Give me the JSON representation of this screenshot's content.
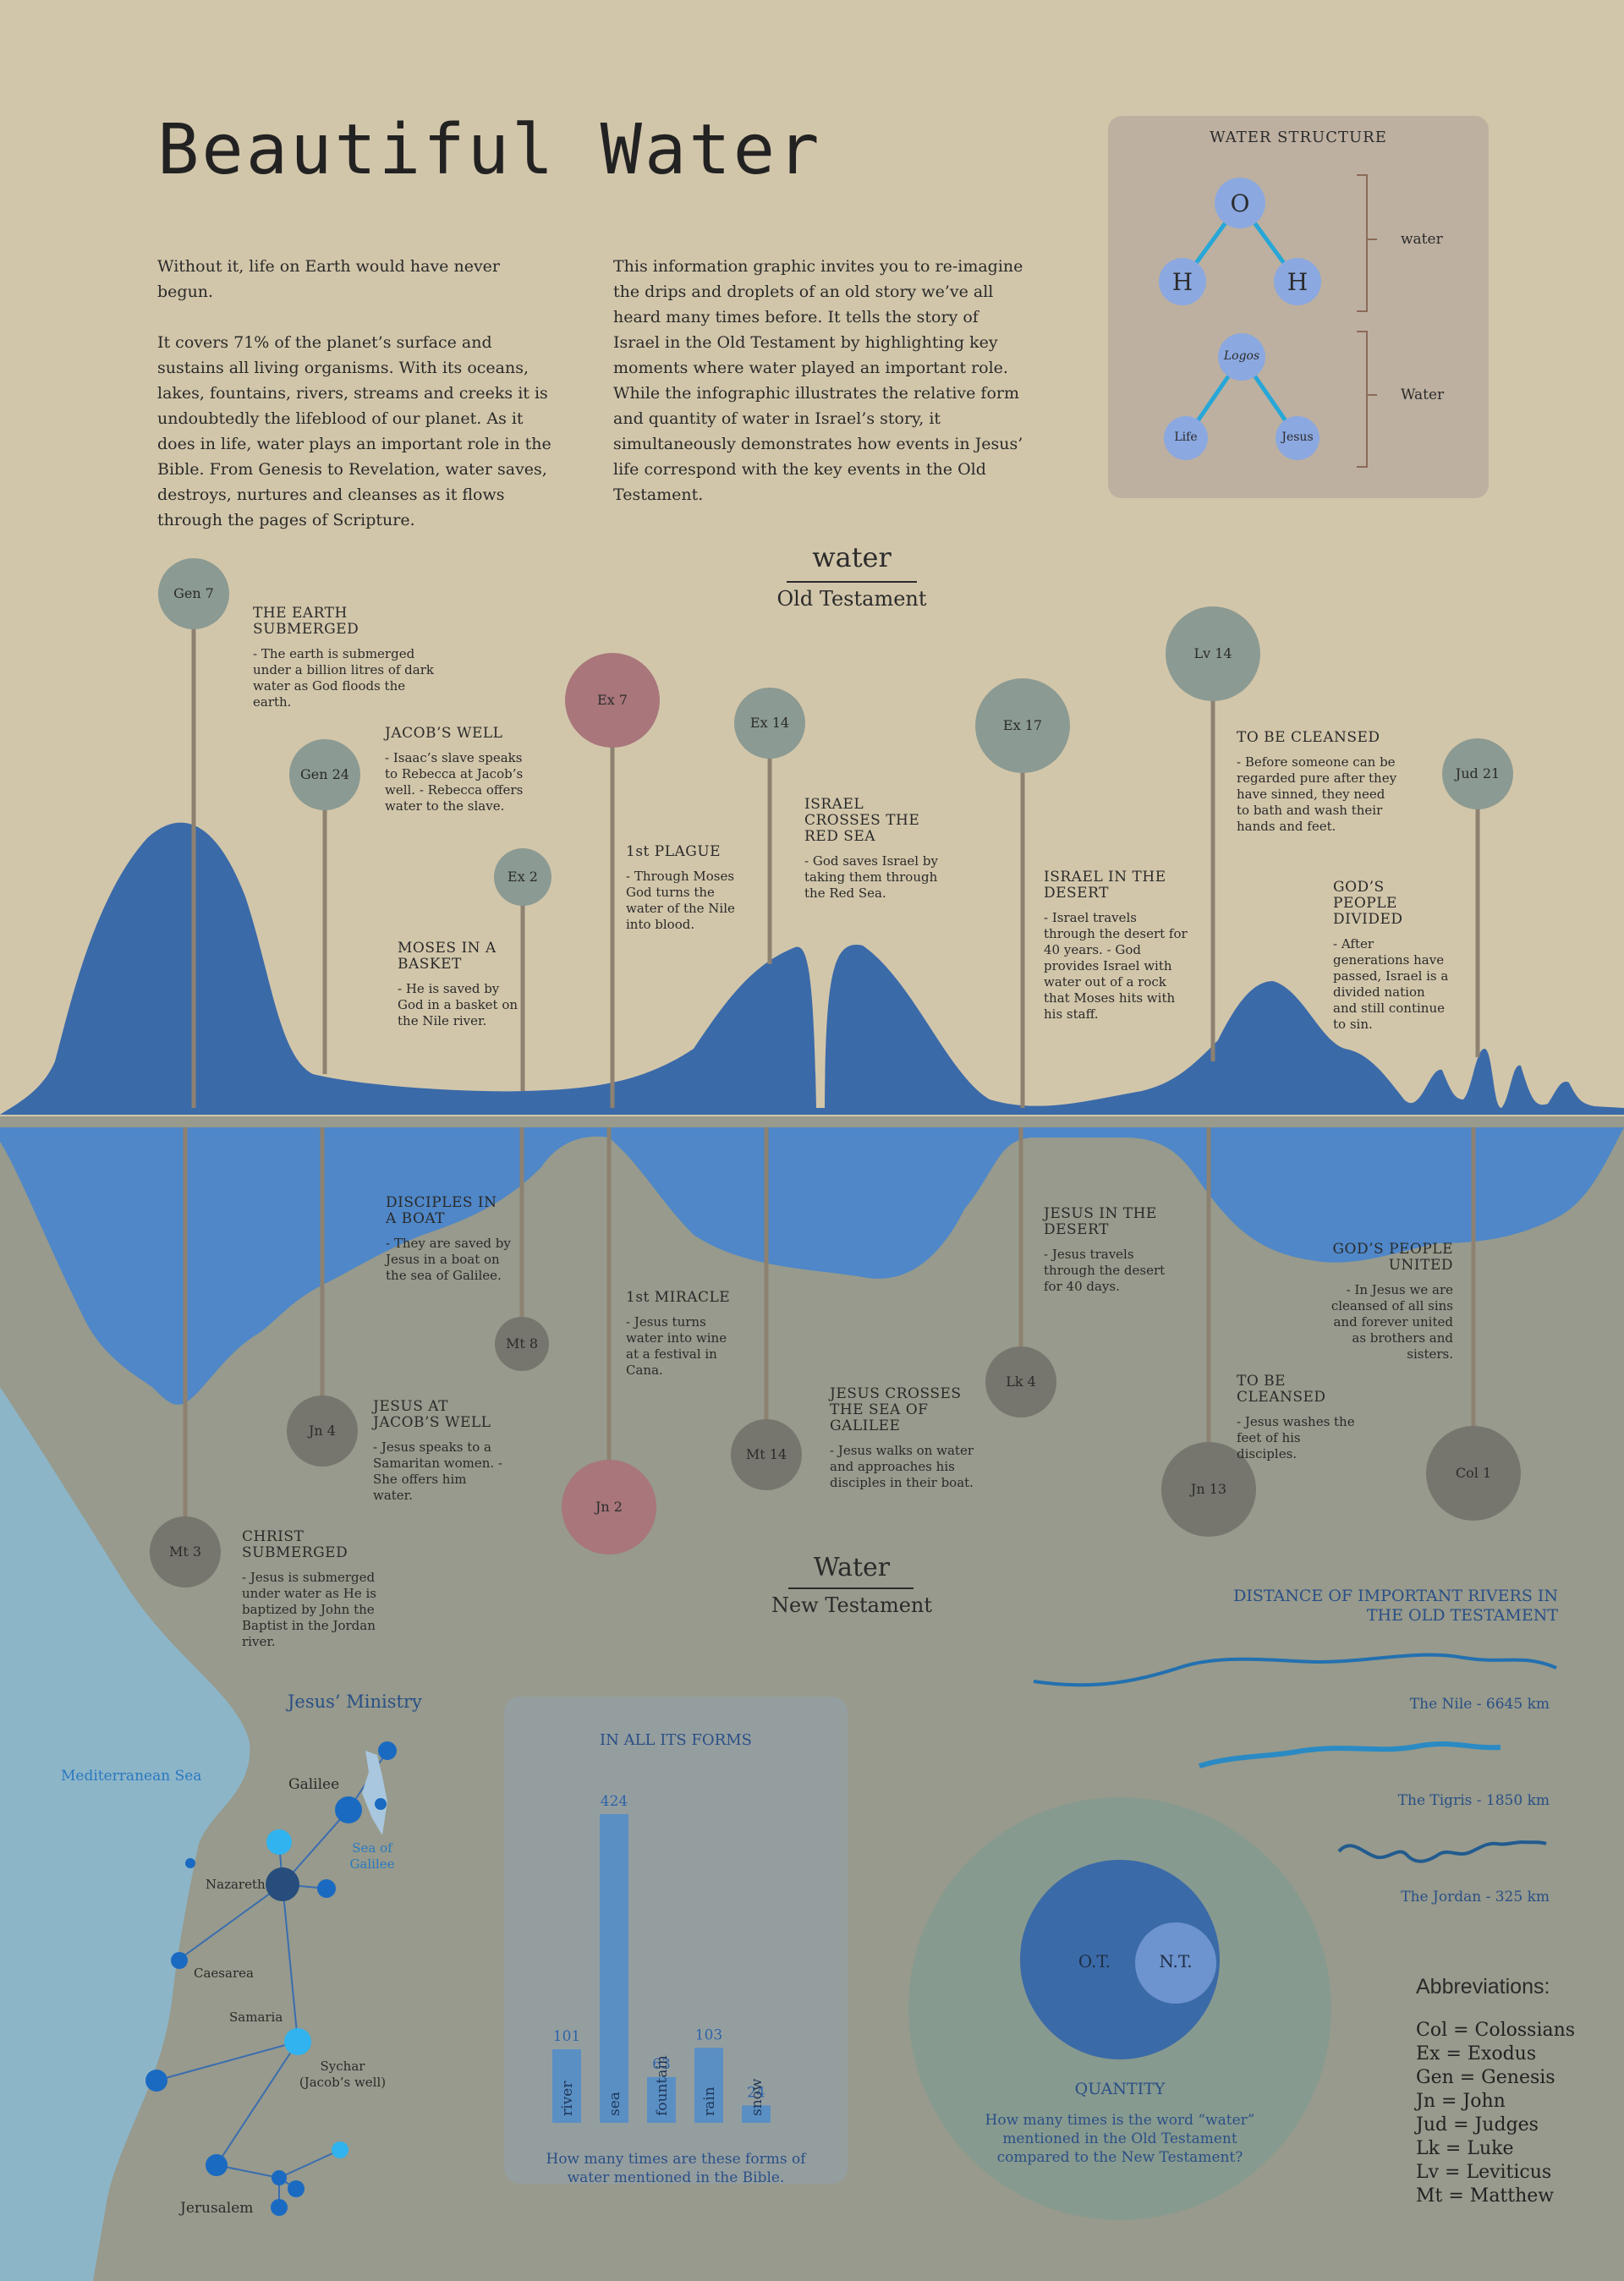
{
  "title": "Beautiful Water",
  "intro_left": [
    "Without it, life on Earth would have never begun.",
    "It covers 71% of the planet’s surface and sustains all living organisms. With its oceans, lakes, fountains, rivers, streams and creeks it is undoubtedly the lifeblood of our planet. As it does in life, water plays an important role in the Bible. From Genesis to Revelation, water saves, destroys, nurtures and cleanses as it flows through the pages of Scripture."
  ],
  "intro_right": "This information graphic invites you to re-imagine the drips and droplets of an old story we’ve all heard many times before. It tells the story of Israel in the Old Testament by highlighting key moments where water played an important role. While the infographic illustrates the relative form and quantity of water in Israel’s story, it simultaneously demonstrates how events in Jesus’ life correspond with the key events in the Old Testament.",
  "water_structure": {
    "title": "WATER STRUCTURE",
    "molecule": {
      "top": "O",
      "left": "H",
      "right": "H",
      "label": "water"
    },
    "logos": {
      "top": "Logos",
      "left": "Life",
      "right": "Jesus",
      "label": "Water"
    }
  },
  "ot_header": {
    "word": "water",
    "sub": "Old Testament"
  },
  "nt_header": {
    "word": "Water",
    "sub": "New Testament"
  },
  "ot_events": [
    {
      "ref": "Gen 7",
      "title": "THE EARTH SUBMERGED",
      "text": "- The earth is submerged under a billion litres of dark water as God floods the earth."
    },
    {
      "ref": "Gen 24",
      "title": "JACOB’S WELL",
      "text": "- Isaac’s slave speaks to Rebecca at Jacob’s well. - Rebecca offers water to the slave."
    },
    {
      "ref": "Ex 2",
      "title": "MOSES IN A BASKET",
      "text": "- He is saved by God in a basket on the Nile river."
    },
    {
      "ref": "Ex 7",
      "title": "1st PLAGUE",
      "text": "- Through Moses God turns the water of the Nile into blood."
    },
    {
      "ref": "Ex 14",
      "title": "ISRAEL CROSSES THE RED SEA",
      "text": "- God saves Israel by taking them through the Red Sea."
    },
    {
      "ref": "Ex 17",
      "title": "ISRAEL IN THE DESERT",
      "text": "- Israel travels through the desert for 40 years. - God provides Israel with water out of a rock that Moses hits with his staff."
    },
    {
      "ref": "Lv 14",
      "title": "TO BE CLEANSED",
      "text": "- Before someone can be regarded pure after they have sinned, they need to bath and wash their hands and feet."
    },
    {
      "ref": "Jud 21",
      "title": "GOD’S PEOPLE DIVIDED",
      "text": "- After generations have passed, Israel is a divided nation and still continue to sin."
    }
  ],
  "nt_events": [
    {
      "ref": "Mt 3",
      "title": "CHRIST SUBMERGED",
      "text": "- Jesus is submerged under water as He is baptized by John the Baptist in the Jordan river."
    },
    {
      "ref": "Jn 4",
      "title": "JESUS AT JACOB’S WELL",
      "text": "- Jesus speaks to a Samaritan women. - She offers him water."
    },
    {
      "ref": "Mt 8",
      "title": "DISCIPLES IN A BOAT",
      "text": "- They are saved by Jesus in a boat on the sea of Galilee."
    },
    {
      "ref": "Jn 2",
      "title": "1st MIRACLE",
      "text": "- Jesus turns water into wine at a festival in Cana."
    },
    {
      "ref": "Mt 14",
      "title": "JESUS CROSSES THE SEA OF GALILEE",
      "text": "- Jesus walks on water and approaches his disciples in their boat."
    },
    {
      "ref": "Lk 4",
      "title": "JESUS IN THE DESERT",
      "text": "- Jesus travels through the desert for 40 days."
    },
    {
      "ref": "Jn 13",
      "title": "TO BE CLEANSED",
      "text": "- Jesus washes the feet of his disciples."
    },
    {
      "ref": "Col 1",
      "title": "GOD’S PEOPLE UNITED",
      "text": "- In Jesus we are cleansed of all sins and forever united as brothers and sisters."
    }
  ],
  "map": {
    "title": "Jesus’ Ministry",
    "sea": "Mediterranean Sea",
    "places": [
      "Galilee",
      "Sea of Galilee",
      "Nazareth",
      "Caesarea",
      "Samaria",
      "Sychar (Jacob’s well)",
      "Jerusalem"
    ]
  },
  "forms_chart": {
    "title": "IN ALL ITS FORMS",
    "caption": "How many times are these forms of water mentioned in the Bible."
  },
  "chart_data": {
    "type": "bar",
    "title": "IN ALL ITS FORMS",
    "categories": [
      "river",
      "sea",
      "fountain",
      "rain",
      "snow"
    ],
    "values": [
      101,
      424,
      63,
      103,
      24
    ],
    "ylim": [
      0,
      424
    ]
  },
  "quantity": {
    "title": "QUANTITY",
    "ot": "O.T.",
    "nt": "N.T.",
    "caption": "How many times is the word “water” mentioned in the Old Testament compared to the New Testament?"
  },
  "rivers": {
    "title": "DISTANCE OF IMPORTANT RIVERS IN THE OLD TESTAMENT",
    "items": [
      "The Nile - 6645 km",
      "The Tigris - 1850 km",
      "The Jordan - 325 km"
    ]
  },
  "abbreviations": {
    "title": "Abbreviations:",
    "items": [
      "Col = Colossians",
      "Ex = Exodus",
      "Gen = Genesis",
      "Jn = John",
      "Jud = Judges",
      "Lk = Luke",
      "Lv = Leviticus",
      "Mt = Matthew"
    ]
  },
  "colors": {
    "background_top": "#d2c6aa",
    "background_bottom": "#979a8c",
    "ot_water": "#3b6aa8",
    "nt_water": "#4f87c8",
    "ot_circle": "#8b9a92",
    "nt_circle": "#76766e",
    "highlight_circle": "#a8767b",
    "map_sea": "#8db5c8"
  }
}
